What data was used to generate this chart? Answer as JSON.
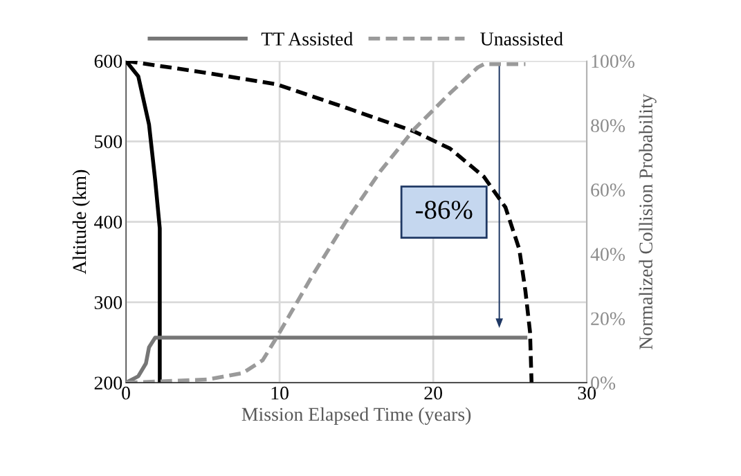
{
  "chart_data": {
    "type": "line",
    "xlabel": "Mission Elapsed Time (years)",
    "ylabel": "Altitude (km)",
    "y2label": "Normalized Collision Probability",
    "xlim": [
      0,
      30
    ],
    "xticks": [
      0,
      10,
      20,
      30
    ],
    "ylim": [
      200,
      600
    ],
    "yticks": [
      200,
      300,
      400,
      500,
      600
    ],
    "y2lim": [
      0,
      100
    ],
    "y2ticks": [
      {
        "value": 0,
        "label": "0%"
      },
      {
        "value": 20,
        "label": "20%"
      },
      {
        "value": 40,
        "label": "40%"
      },
      {
        "value": 60,
        "label": "60%"
      },
      {
        "value": 80,
        "label": "80%"
      },
      {
        "value": 100,
        "label": "100%"
      }
    ],
    "grid": true,
    "legend": "top",
    "marker": "none",
    "annotations": [
      "-86%"
    ],
    "series": [
      {
        "color": "#000000",
        "line_style": "solid",
        "x": [
          0,
          0.8,
          1.5,
          1.9,
          2.2,
          2.2
        ],
        "values": [
          600,
          581,
          521,
          452,
          392,
          200
        ]
      },
      {
        "color": "#000000",
        "line_style": "dashed",
        "x": [
          0,
          5.3,
          9.8,
          14.3,
          18.8,
          21.1,
          23.3,
          24.7,
          25.6,
          26.0,
          26.3,
          26.4
        ],
        "values": [
          600,
          585,
          571,
          542,
          512,
          491,
          456,
          418,
          366,
          314,
          263,
          200
        ]
      },
      {
        "name": "TT Assisted",
        "color": "#767676",
        "line_style": "solid",
        "axis": "y2",
        "x": [
          0,
          0.8,
          1.3,
          1.5,
          1.9,
          2.6,
          26.0
        ],
        "values": [
          0,
          2,
          6,
          11,
          14,
          14,
          14
        ]
      },
      {
        "name": "Unassisted",
        "color": "#9a9a9a",
        "line_style": "dashed",
        "axis": "y2",
        "x": [
          0,
          5.3,
          7.6,
          8.9,
          9.8,
          12.1,
          14.3,
          16.6,
          18.8,
          21.1,
          22.9,
          23.3,
          26.0
        ],
        "values": [
          0,
          1,
          3,
          7,
          14,
          33,
          50,
          66,
          79,
          90,
          98,
          99,
          99
        ]
      }
    ]
  }
}
